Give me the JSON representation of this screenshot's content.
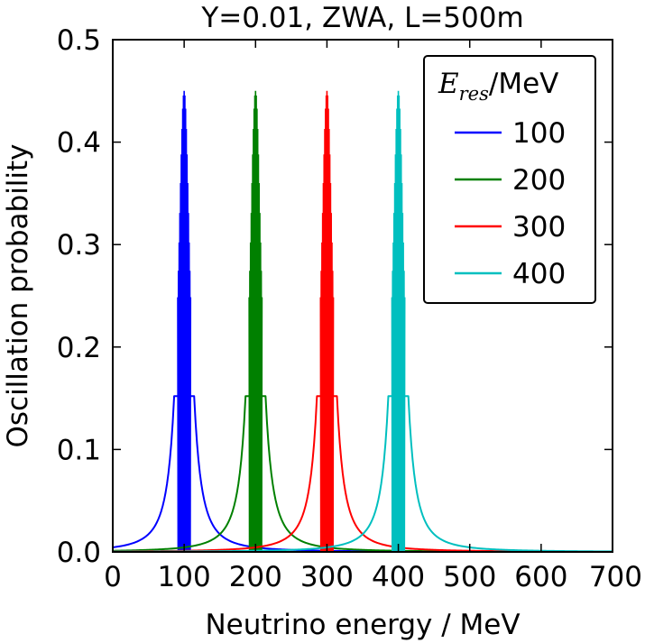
{
  "chart_data": {
    "type": "line",
    "title": "Y=0.01, ZWA, L=500m",
    "xlabel": "Neutrino energy / MeV",
    "ylabel": "Oscillation probability",
    "xlim": [
      0,
      700
    ],
    "ylim": [
      0,
      0.5
    ],
    "x_ticks": [
      "0",
      "100",
      "200",
      "300",
      "400",
      "500",
      "600",
      "700"
    ],
    "y_ticks": [
      "0.0",
      "0.1",
      "0.2",
      "0.3",
      "0.4",
      "0.5"
    ],
    "grid": false,
    "legend": {
      "position": "top-right",
      "title_symbol": "E",
      "title_subscript": "res",
      "title_unit": "/MeV"
    },
    "series": [
      {
        "name": "100",
        "color": "#0000ff",
        "resonance": 100,
        "peak": 0.45,
        "width": 10
      },
      {
        "name": "200",
        "color": "#008000",
        "resonance": 200,
        "peak": 0.45,
        "width": 10
      },
      {
        "name": "300",
        "color": "#ff0000",
        "resonance": 300,
        "peak": 0.45,
        "width": 10
      },
      {
        "name": "400",
        "color": "#00bfbf",
        "resonance": 400,
        "peak": 0.45,
        "width": 10
      }
    ]
  }
}
